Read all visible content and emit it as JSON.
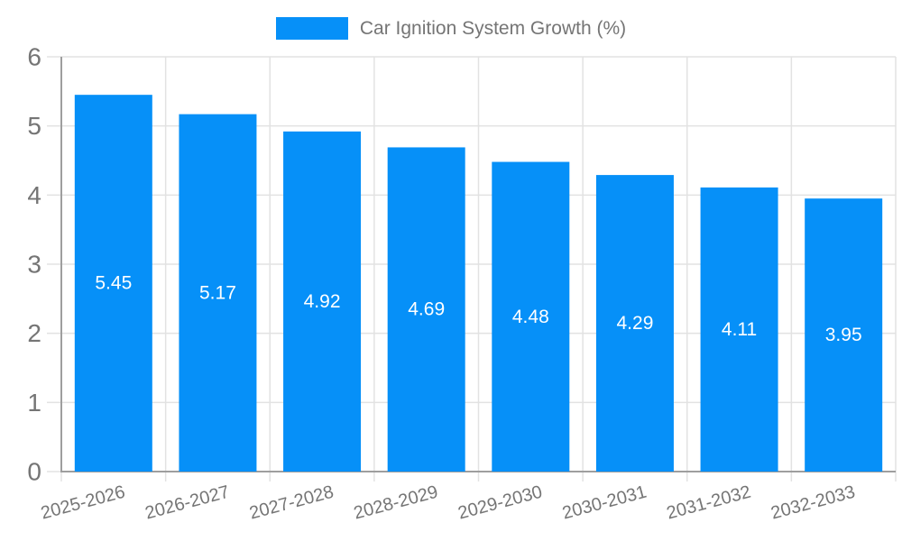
{
  "legend": {
    "label": "Car Ignition System Growth (%)"
  },
  "chart_data": {
    "type": "bar",
    "title": "Car Ignition System Growth (%)",
    "categories": [
      "2025-2026",
      "2026-2027",
      "2027-2028",
      "2028-2029",
      "2029-2030",
      "2030-2031",
      "2031-2032",
      "2032-2033"
    ],
    "values": [
      5.45,
      5.17,
      4.92,
      4.69,
      4.48,
      4.29,
      4.11,
      3.95
    ],
    "value_labels": [
      "5.45",
      "5.17",
      "4.92",
      "4.69",
      "4.48",
      "4.29",
      "4.11",
      "3.95"
    ],
    "xlabel": "",
    "ylabel": "",
    "ylim": [
      0,
      6
    ],
    "yticks": [
      0,
      1,
      2,
      3,
      4,
      5,
      6
    ],
    "grid": true,
    "legend_position": "top",
    "bar_color": "#0690f8",
    "value_label_color": "#ffffff",
    "axis_text_color": "#757575",
    "grid_color": "#e2e2e2",
    "axis_line_color": "#9e9e9e"
  }
}
